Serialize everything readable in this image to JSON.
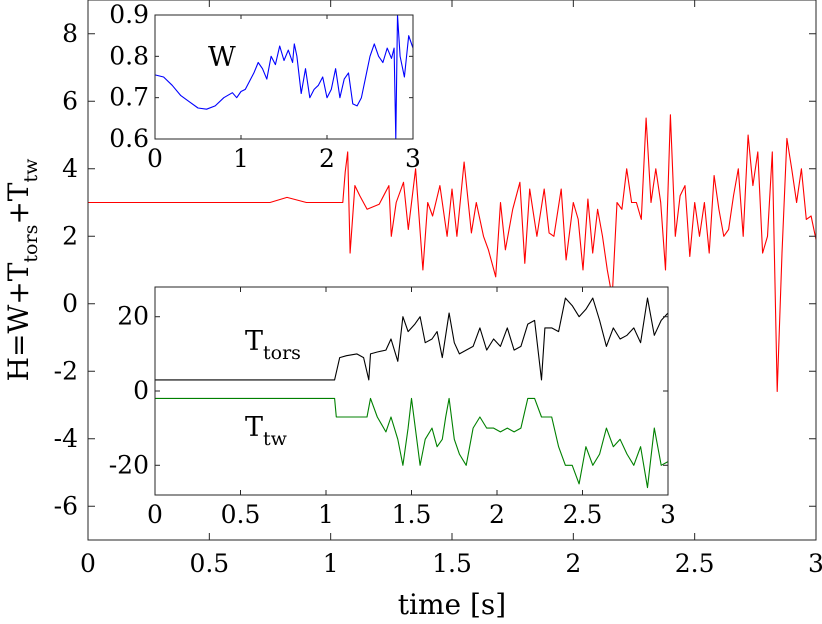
{
  "chart_data": [
    {
      "id": "main",
      "type": "line",
      "xlabel": "time [s]",
      "ylabel": {
        "base": "H=W+T",
        "sub1": "tors",
        "mid": "+T",
        "sub2": "tw"
      },
      "xlim": [
        0,
        3
      ],
      "ylim": [
        -7,
        9
      ],
      "xticks": [
        0,
        0.5,
        1,
        1.5,
        2,
        2.5,
        3
      ],
      "xtick_labels": [
        "0",
        "0.5",
        "1",
        "1.5",
        "2",
        "2.5",
        "3"
      ],
      "yticks": [
        -6,
        -4,
        -2,
        0,
        2,
        4,
        6,
        8
      ],
      "ytick_labels": [
        "-6",
        "-4",
        "-2",
        "0",
        "2",
        "4",
        "6",
        "8"
      ],
      "series": [
        {
          "name": "H",
          "color": "#ff0000",
          "x": [
            0,
            0.3,
            0.6,
            0.75,
            0.82,
            0.9,
            1.05,
            1.06,
            1.07,
            1.08,
            1.1,
            1.12,
            1.15,
            1.2,
            1.24,
            1.25,
            1.27,
            1.3,
            1.32,
            1.35,
            1.38,
            1.4,
            1.42,
            1.45,
            1.48,
            1.5,
            1.52,
            1.55,
            1.58,
            1.6,
            1.63,
            1.65,
            1.68,
            1.7,
            1.72,
            1.75,
            1.78,
            1.8,
            1.82,
            1.85,
            1.88,
            1.9,
            1.92,
            1.95,
            1.97,
            2.0,
            2.02,
            2.04,
            2.06,
            2.08,
            2.1,
            2.12,
            2.14,
            2.16,
            2.18,
            2.2,
            2.22,
            2.24,
            2.26,
            2.28,
            2.3,
            2.32,
            2.34,
            2.36,
            2.38,
            2.4,
            2.42,
            2.44,
            2.46,
            2.48,
            2.5,
            2.52,
            2.54,
            2.56,
            2.58,
            2.6,
            2.62,
            2.64,
            2.66,
            2.68,
            2.7,
            2.72,
            2.74,
            2.76,
            2.78,
            2.8,
            2.82,
            2.84,
            2.86,
            2.88,
            2.9,
            2.92,
            2.94,
            2.96,
            2.98,
            3.0
          ],
          "y": [
            3.0,
            3.0,
            3.0,
            3.0,
            3.15,
            3.0,
            3.0,
            3.9,
            4.5,
            1.5,
            3.5,
            3.2,
            2.8,
            2.95,
            3.5,
            2.0,
            3.0,
            3.6,
            2.2,
            4.0,
            1.0,
            3.0,
            2.6,
            3.5,
            2.0,
            3.4,
            2.0,
            4.2,
            2.1,
            3.0,
            2.0,
            1.6,
            0.8,
            3.0,
            1.6,
            2.8,
            3.6,
            1.2,
            3.4,
            2.0,
            3.4,
            2.1,
            2.0,
            3.4,
            1.3,
            3.0,
            2.5,
            1.0,
            3.1,
            1.5,
            2.8,
            2.0,
            1.0,
            0.2,
            3.0,
            2.8,
            4.0,
            3.0,
            3.0,
            2.5,
            5.5,
            3.0,
            4.0,
            3.0,
            1.0,
            5.6,
            2.0,
            3.2,
            3.5,
            1.4,
            3.0,
            2.0,
            3.0,
            1.5,
            3.8,
            2.8,
            2.0,
            2.2,
            3.2,
            4.0,
            2.0,
            5.0,
            3.5,
            4.5,
            1.5,
            2.0,
            4.5,
            -2.6,
            1.5,
            4.9,
            4.0,
            3.0,
            4.0,
            2.5,
            2.6,
            1.9
          ]
        }
      ]
    },
    {
      "id": "inset-w",
      "type": "line",
      "annotation": "W",
      "xlim": [
        0,
        3
      ],
      "ylim": [
        0.6,
        0.9
      ],
      "xticks": [
        0,
        1,
        2,
        3
      ],
      "xtick_labels": [
        "0",
        "1",
        "2",
        "3"
      ],
      "yticks": [
        0.6,
        0.7,
        0.8,
        0.9
      ],
      "ytick_labels": [
        "0.6",
        "0.7",
        "0.8",
        "0.9"
      ],
      "series": [
        {
          "name": "W",
          "color": "#0000ff",
          "x": [
            0,
            0.1,
            0.2,
            0.3,
            0.4,
            0.5,
            0.6,
            0.7,
            0.8,
            0.9,
            0.95,
            1.0,
            1.05,
            1.1,
            1.15,
            1.2,
            1.25,
            1.3,
            1.35,
            1.4,
            1.45,
            1.5,
            1.55,
            1.6,
            1.62,
            1.65,
            1.7,
            1.75,
            1.8,
            1.85,
            1.9,
            1.95,
            2.0,
            2.05,
            2.1,
            2.15,
            2.2,
            2.25,
            2.3,
            2.35,
            2.4,
            2.45,
            2.5,
            2.55,
            2.6,
            2.65,
            2.7,
            2.75,
            2.78,
            2.8,
            2.82,
            2.85,
            2.9,
            2.95,
            3.0
          ],
          "y": [
            0.755,
            0.75,
            0.73,
            0.705,
            0.69,
            0.675,
            0.672,
            0.68,
            0.7,
            0.712,
            0.7,
            0.715,
            0.72,
            0.74,
            0.76,
            0.785,
            0.77,
            0.745,
            0.8,
            0.78,
            0.825,
            0.79,
            0.815,
            0.785,
            0.83,
            0.8,
            0.71,
            0.77,
            0.7,
            0.72,
            0.73,
            0.75,
            0.7,
            0.72,
            0.77,
            0.7,
            0.745,
            0.76,
            0.685,
            0.68,
            0.7,
            0.75,
            0.8,
            0.83,
            0.8,
            0.785,
            0.82,
            0.795,
            0.82,
            0.6,
            0.9,
            0.8,
            0.75,
            0.85,
            0.82
          ]
        }
      ]
    },
    {
      "id": "inset-t",
      "type": "line",
      "annotations": [
        {
          "base": "T",
          "sub": "tors"
        },
        {
          "base": "T",
          "sub": "tw"
        }
      ],
      "xlim": [
        0,
        3
      ],
      "ylim": [
        -28,
        28
      ],
      "xticks": [
        0,
        0.5,
        1,
        1.5,
        2,
        2.5,
        3
      ],
      "xtick_labels": [
        "0",
        "0.5",
        "1",
        "1.5",
        "2",
        "2.5",
        "3"
      ],
      "yticks": [
        -20,
        0,
        20
      ],
      "ytick_labels": [
        "-20",
        "0",
        "20"
      ],
      "series": [
        {
          "name": "T_tors",
          "color": "#000000",
          "x": [
            0,
            1.05,
            1.08,
            1.12,
            1.18,
            1.22,
            1.25,
            1.26,
            1.3,
            1.35,
            1.38,
            1.42,
            1.45,
            1.48,
            1.52,
            1.55,
            1.58,
            1.62,
            1.65,
            1.68,
            1.72,
            1.75,
            1.78,
            1.82,
            1.86,
            1.9,
            1.94,
            1.98,
            2.02,
            2.06,
            2.1,
            2.14,
            2.18,
            2.22,
            2.26,
            2.28,
            2.32,
            2.36,
            2.4,
            2.44,
            2.48,
            2.52,
            2.56,
            2.6,
            2.64,
            2.68,
            2.72,
            2.76,
            2.8,
            2.84,
            2.88,
            2.92,
            2.96,
            3.0
          ],
          "y": [
            3,
            3,
            9,
            9.5,
            10,
            9,
            3,
            10,
            10.5,
            11,
            14,
            8,
            20,
            16,
            18,
            20,
            13,
            14,
            16,
            9,
            21,
            13,
            10,
            11,
            12,
            17,
            11,
            14,
            12,
            17,
            11,
            12,
            18,
            19,
            3,
            17,
            17,
            16,
            25,
            23,
            20,
            22,
            25,
            19,
            12,
            17,
            14,
            15,
            17,
            13,
            25,
            15,
            19,
            21
          ]
        },
        {
          "name": "T_tw",
          "color": "#008000",
          "x": [
            0,
            1.05,
            1.06,
            1.2,
            1.22,
            1.24,
            1.26,
            1.3,
            1.35,
            1.38,
            1.42,
            1.45,
            1.48,
            1.5,
            1.55,
            1.58,
            1.62,
            1.65,
            1.68,
            1.7,
            1.72,
            1.75,
            1.78,
            1.82,
            1.86,
            1.9,
            1.94,
            1.98,
            2.02,
            2.06,
            2.1,
            2.14,
            2.18,
            2.22,
            2.26,
            2.28,
            2.32,
            2.36,
            2.4,
            2.44,
            2.48,
            2.52,
            2.56,
            2.6,
            2.64,
            2.68,
            2.72,
            2.76,
            2.8,
            2.84,
            2.88,
            2.92,
            2.96,
            3.0
          ],
          "y": [
            -2,
            -2,
            -7,
            -7,
            -7,
            -7,
            -2,
            -7,
            -11,
            -7,
            -13,
            -20,
            -10,
            -2,
            -20,
            -13,
            -10,
            -15,
            -13,
            -7,
            -2,
            -13,
            -17,
            -20,
            -10,
            -7,
            -10,
            -10,
            -11,
            -10,
            -11,
            -10,
            -2,
            -2,
            -7,
            -7,
            -7,
            -15,
            -20,
            -20,
            -25,
            -15,
            -20,
            -17,
            -10,
            -15,
            -13,
            -17,
            -20,
            -15,
            -26,
            -10,
            -20,
            -19
          ]
        }
      ]
    }
  ]
}
